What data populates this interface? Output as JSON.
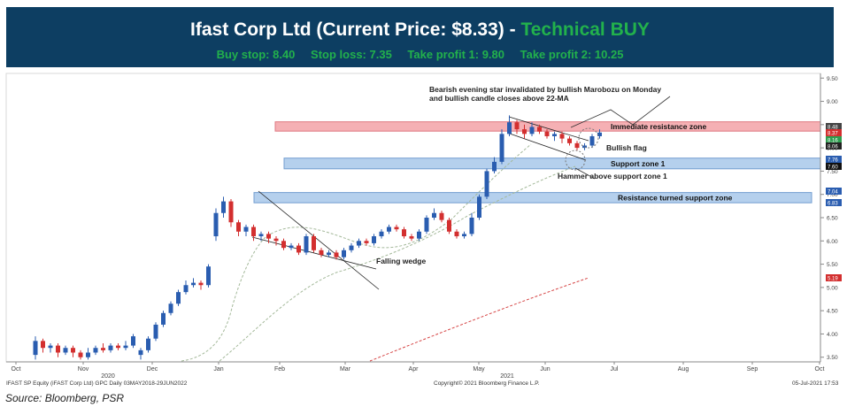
{
  "header": {
    "title_main": "Ifast Corp Ltd (Current Price: $8.33) - ",
    "title_rating": "Technical BUY",
    "levels": [
      "Buy stop: 8.40",
      "Stop loss: 7.35",
      "Take profit 1: 9.80",
      "Take profit 2: 10.25"
    ]
  },
  "footer": {
    "left": "IFAST SP Equity (iFAST Corp Ltd) GPC  Daily 03MAY2018-29JUN2022",
    "center": "Copyright© 2021 Bloomberg Finance L.P.",
    "right": "05-Jul-2021 17:53",
    "source": "Source: Bloomberg, PSR"
  },
  "colors": {
    "header_bg": "#0d3e62",
    "rating": "#22b14c",
    "resistance_zone": "#f4a3a8",
    "support_zone": "#a9c8ea",
    "candle_up": "#2a5db0",
    "candle_down": "#d32f2f",
    "ma_dashed": "#a4b99a",
    "ma_long": "#d64545"
  },
  "chart_data": {
    "type": "candlestick",
    "title": "",
    "y_axis": {
      "position": "right",
      "range": [
        3.4,
        9.6
      ],
      "ticks": [
        "9.50",
        "9.00",
        "8.50",
        "8.00",
        "7.50",
        "7.00",
        "6.50",
        "6.00",
        "5.50",
        "5.00",
        "4.50",
        "4.00",
        "3.50"
      ]
    },
    "x_axis": {
      "ticks": [
        "Oct",
        "Nov",
        "Dec",
        "Jan",
        "Feb",
        "Mar",
        "Apr",
        "May",
        "Jun",
        "Jul",
        "Aug",
        "Sep",
        "Oct"
      ],
      "years": [
        "2020",
        "2021"
      ]
    },
    "price_labels": [
      "8.48",
      "8.37",
      "8.16",
      "8.06",
      "7.76",
      "7.60",
      "7.04",
      "6.83",
      "5.19"
    ],
    "zones": [
      {
        "label": "Immediate resistance zone",
        "low": 8.36,
        "high": 8.56
      },
      {
        "label": "Support zone 1",
        "low": 7.55,
        "high": 7.78
      },
      {
        "label": "Resistance turned support zone",
        "low": 6.82,
        "high": 7.04
      }
    ],
    "annotations": [
      "Bearish evening star invalidated by bullish Marobozu on Monday",
      "and bullish candle closes above 22-MA",
      "Bullish flag",
      "Hammer above support zone 1",
      "Falling wedge"
    ],
    "candles": [
      [
        0,
        3.55,
        3.85,
        3.95,
        3.45
      ],
      [
        1,
        3.85,
        3.7,
        3.9,
        3.6
      ],
      [
        2,
        3.7,
        3.75,
        3.8,
        3.6
      ],
      [
        3,
        3.75,
        3.6,
        3.8,
        3.5
      ],
      [
        4,
        3.6,
        3.7,
        3.75,
        3.55
      ],
      [
        5,
        3.7,
        3.6,
        3.75,
        3.5
      ],
      [
        6,
        3.6,
        3.5,
        3.65,
        3.45
      ],
      [
        7,
        3.5,
        3.6,
        3.7,
        3.45
      ],
      [
        8,
        3.6,
        3.7,
        3.75,
        3.55
      ],
      [
        9,
        3.7,
        3.65,
        3.8,
        3.6
      ],
      [
        10,
        3.65,
        3.75,
        3.8,
        3.6
      ],
      [
        11,
        3.75,
        3.7,
        3.8,
        3.65
      ],
      [
        12,
        3.7,
        3.75,
        3.85,
        3.65
      ],
      [
        13,
        3.75,
        3.95,
        4.0,
        3.7
      ],
      [
        14,
        3.55,
        3.65,
        3.7,
        3.45
      ],
      [
        15,
        3.65,
        3.9,
        3.95,
        3.6
      ],
      [
        16,
        3.9,
        4.2,
        4.25,
        3.85
      ],
      [
        17,
        4.2,
        4.45,
        4.5,
        4.15
      ],
      [
        18,
        4.45,
        4.65,
        4.7,
        4.4
      ],
      [
        19,
        4.65,
        4.9,
        4.95,
        4.6
      ],
      [
        20,
        4.9,
        5.05,
        5.15,
        4.85
      ],
      [
        21,
        5.05,
        5.1,
        5.2,
        5.0
      ],
      [
        22,
        5.1,
        5.05,
        5.15,
        4.95
      ],
      [
        23,
        5.05,
        5.45,
        5.5,
        5.0
      ],
      [
        24,
        6.1,
        6.6,
        6.7,
        6.0
      ],
      [
        25,
        6.6,
        6.85,
        6.95,
        6.5
      ],
      [
        26,
        6.85,
        6.4,
        6.9,
        6.3
      ],
      [
        27,
        6.4,
        6.2,
        6.45,
        6.1
      ],
      [
        28,
        6.2,
        6.3,
        6.35,
        6.1
      ],
      [
        29,
        6.3,
        6.1,
        6.35,
        6.0
      ],
      [
        30,
        6.1,
        6.15,
        6.2,
        6.0
      ],
      [
        31,
        6.15,
        6.05,
        6.2,
        5.95
      ],
      [
        32,
        6.05,
        6.0,
        6.1,
        5.9
      ],
      [
        33,
        6.0,
        5.85,
        6.05,
        5.8
      ],
      [
        34,
        5.85,
        5.9,
        5.95,
        5.8
      ],
      [
        35,
        5.9,
        5.75,
        5.95,
        5.7
      ],
      [
        36,
        5.75,
        6.1,
        6.15,
        5.7
      ],
      [
        37,
        6.1,
        5.8,
        6.15,
        5.75
      ],
      [
        38,
        5.8,
        5.7,
        5.85,
        5.65
      ],
      [
        39,
        5.7,
        5.75,
        5.8,
        5.65
      ],
      [
        40,
        5.75,
        5.65,
        5.8,
        5.6
      ],
      [
        41,
        5.65,
        5.8,
        5.85,
        5.6
      ],
      [
        42,
        5.8,
        5.9,
        5.95,
        5.75
      ],
      [
        43,
        5.9,
        6.0,
        6.05,
        5.85
      ],
      [
        44,
        6.0,
        5.95,
        6.05,
        5.9
      ],
      [
        45,
        5.95,
        6.1,
        6.15,
        5.9
      ],
      [
        46,
        6.1,
        6.2,
        6.25,
        6.05
      ],
      [
        47,
        6.2,
        6.3,
        6.35,
        6.15
      ],
      [
        48,
        6.3,
        6.25,
        6.35,
        6.2
      ],
      [
        49,
        6.25,
        6.1,
        6.3,
        6.05
      ],
      [
        50,
        6.1,
        6.05,
        6.15,
        6.0
      ],
      [
        51,
        6.05,
        6.2,
        6.25,
        6.0
      ],
      [
        52,
        6.2,
        6.5,
        6.55,
        6.15
      ],
      [
        53,
        6.5,
        6.6,
        6.7,
        6.45
      ],
      [
        54,
        6.6,
        6.45,
        6.65,
        6.4
      ],
      [
        55,
        6.45,
        6.2,
        6.5,
        6.15
      ],
      [
        56,
        6.2,
        6.1,
        6.25,
        6.05
      ],
      [
        57,
        6.1,
        6.15,
        6.2,
        6.05
      ],
      [
        58,
        6.15,
        6.5,
        6.6,
        6.1
      ],
      [
        59,
        6.5,
        6.95,
        7.0,
        6.45
      ],
      [
        60,
        6.95,
        7.5,
        7.55,
        6.9
      ],
      [
        61,
        7.5,
        7.7,
        7.8,
        7.45
      ],
      [
        62,
        7.7,
        8.3,
        8.4,
        7.65
      ],
      [
        63,
        8.3,
        8.55,
        8.7,
        8.25
      ],
      [
        64,
        8.55,
        8.4,
        8.6,
        8.3
      ],
      [
        65,
        8.4,
        8.3,
        8.5,
        8.2
      ],
      [
        66,
        8.3,
        8.45,
        8.55,
        8.25
      ],
      [
        67,
        8.45,
        8.35,
        8.5,
        8.3
      ],
      [
        68,
        8.35,
        8.25,
        8.4,
        8.2
      ],
      [
        69,
        8.25,
        8.3,
        8.35,
        8.15
      ],
      [
        70,
        8.3,
        8.2,
        8.35,
        8.1
      ],
      [
        71,
        8.2,
        8.1,
        8.25,
        8.05
      ],
      [
        72,
        8.1,
        8.0,
        8.15,
        7.95
      ],
      [
        73,
        8.0,
        8.05,
        8.1,
        7.95
      ],
      [
        74,
        8.05,
        8.25,
        8.3,
        8.0
      ],
      [
        75,
        8.25,
        8.33,
        8.4,
        8.2
      ]
    ]
  }
}
